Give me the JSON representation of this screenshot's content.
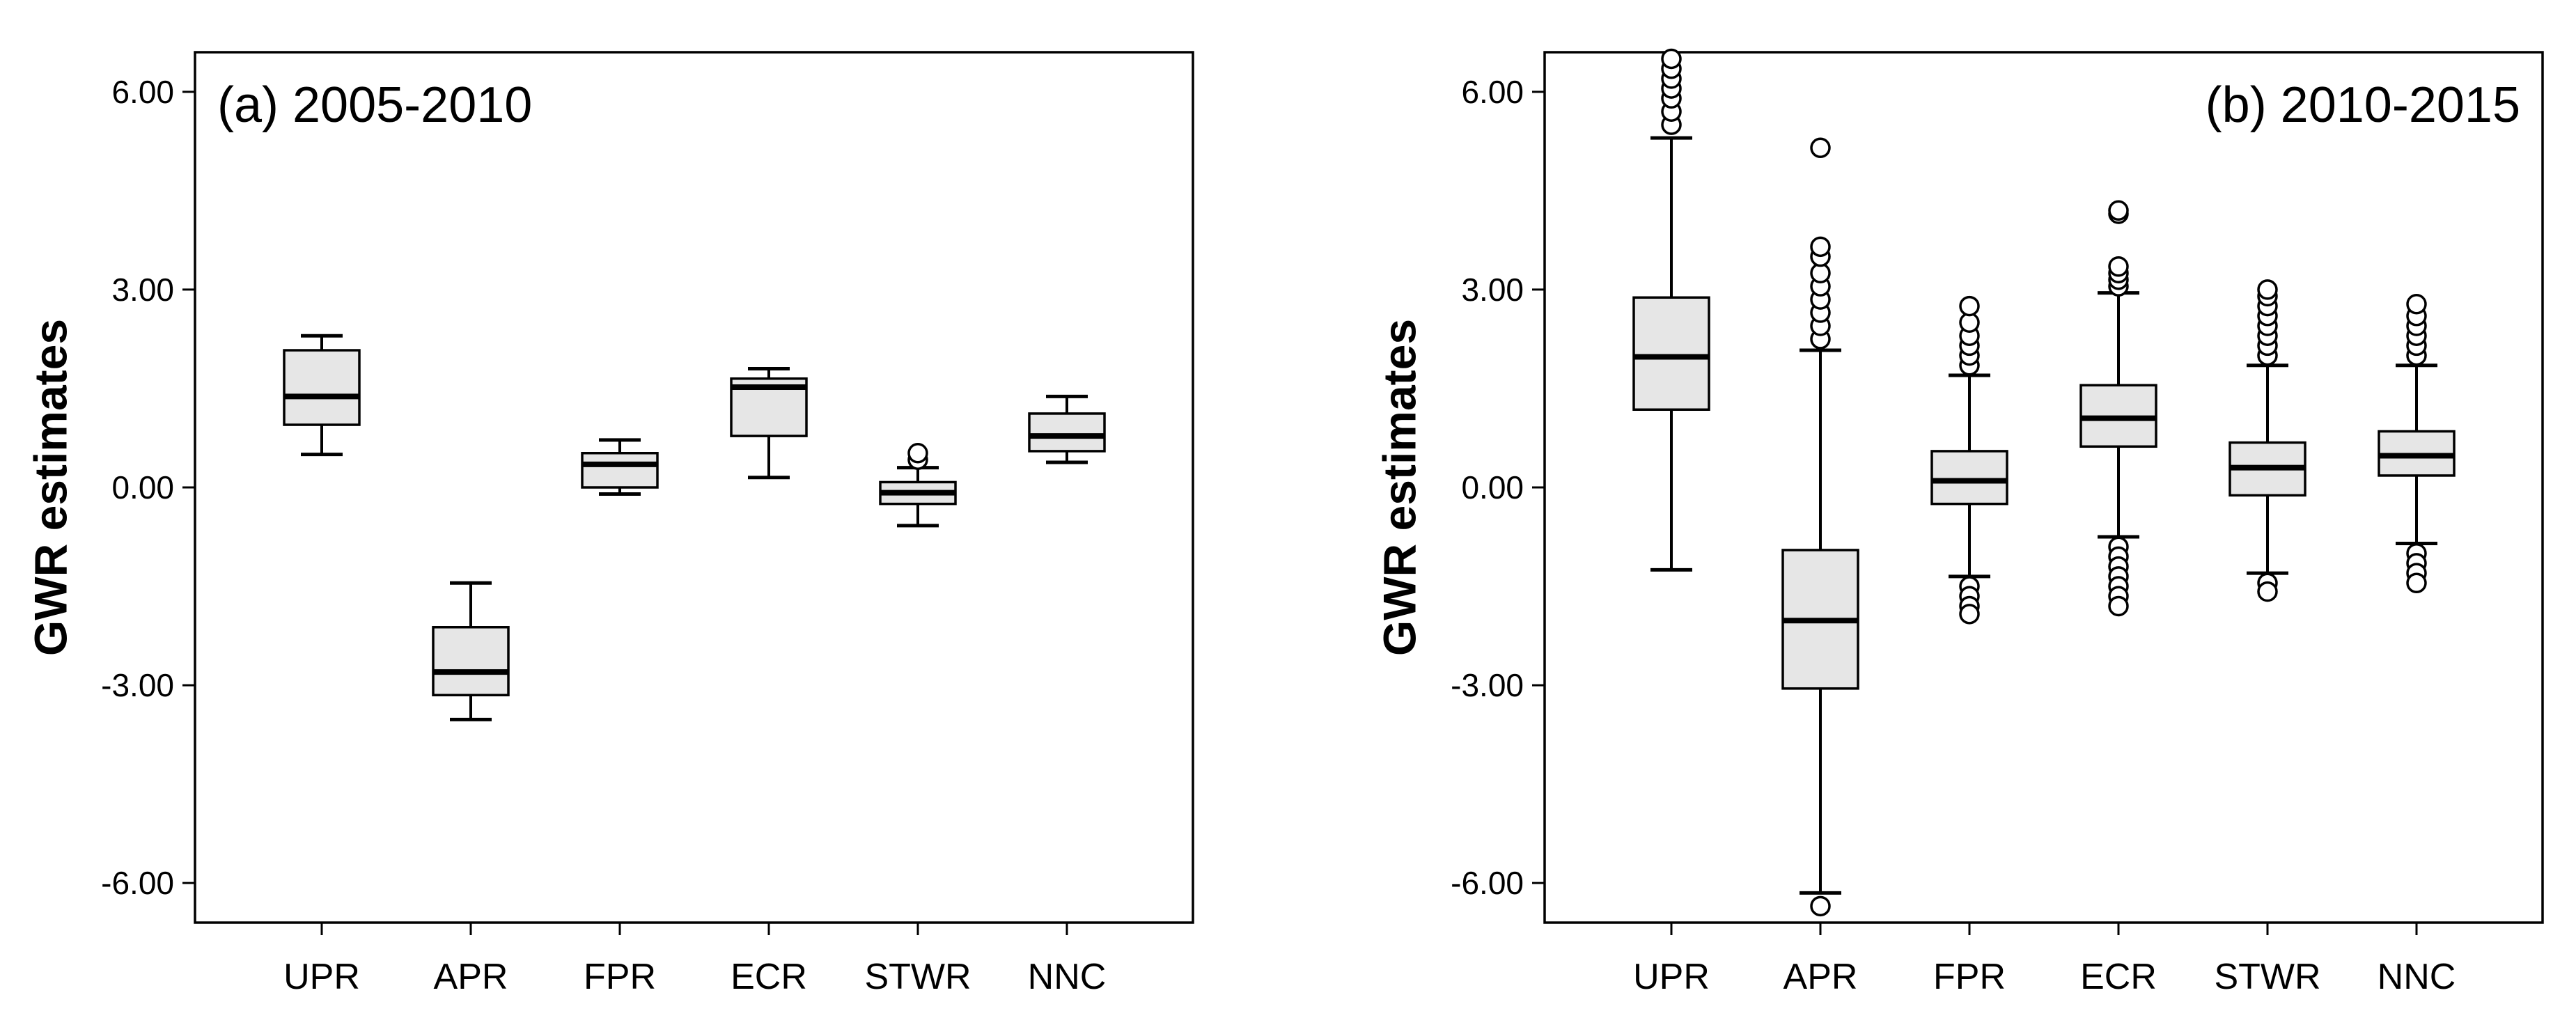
{
  "chart_data": [
    {
      "type": "box",
      "panel_label": "(a) 2005-2010",
      "label_position": "top-left",
      "ylabel": "GWR estimates",
      "ylim": [
        -6.6,
        6.6
      ],
      "yticks": [
        "6.00",
        "3.00",
        "0.00",
        "-3.00",
        "-6.00"
      ],
      "ytick_values": [
        6,
        3,
        0,
        -3,
        -6
      ],
      "categories": [
        "UPR",
        "APR",
        "FPR",
        "ECR",
        "STWR",
        "NNC"
      ],
      "box_color": "#e6e6e6",
      "boxes": [
        {
          "whisker_low": 0.5,
          "q1": 0.95,
          "median": 1.38,
          "q3": 2.08,
          "whisker_high": 2.3,
          "outliers": []
        },
        {
          "whisker_low": -3.52,
          "q1": -3.15,
          "median": -2.8,
          "q3": -2.12,
          "whisker_high": -1.45,
          "outliers": []
        },
        {
          "whisker_low": -0.1,
          "q1": 0.0,
          "median": 0.35,
          "q3": 0.52,
          "whisker_high": 0.72,
          "outliers": []
        },
        {
          "whisker_low": 0.15,
          "q1": 0.78,
          "median": 1.52,
          "q3": 1.65,
          "whisker_high": 1.8,
          "outliers": []
        },
        {
          "whisker_low": -0.58,
          "q1": -0.25,
          "median": -0.08,
          "q3": 0.08,
          "whisker_high": 0.3,
          "outliers": [
            0.42,
            0.52
          ]
        },
        {
          "whisker_low": 0.38,
          "q1": 0.55,
          "median": 0.78,
          "q3": 1.12,
          "whisker_high": 1.38,
          "outliers": []
        }
      ]
    },
    {
      "type": "box",
      "panel_label": "(b) 2010-2015",
      "label_position": "top-right",
      "ylabel": "GWR estimates",
      "ylim": [
        -6.6,
        6.6
      ],
      "yticks": [
        "6.00",
        "3.00",
        "0.00",
        "-3.00",
        "-6.00"
      ],
      "ytick_values": [
        6,
        3,
        0,
        -3,
        -6
      ],
      "categories": [
        "UPR",
        "APR",
        "FPR",
        "ECR",
        "STWR",
        "NNC"
      ],
      "box_color": "#e6e6e6",
      "boxes": [
        {
          "whisker_low": -1.25,
          "q1": 1.18,
          "median": 1.98,
          "q3": 2.88,
          "whisker_high": 5.3,
          "outliers": [
            5.5,
            5.7,
            5.9,
            6.05,
            6.2,
            6.35,
            6.5
          ]
        },
        {
          "whisker_low": -6.15,
          "q1": -3.05,
          "median": -2.02,
          "q3": -0.95,
          "whisker_high": 2.08,
          "outliers": [
            2.25,
            2.45,
            2.65,
            2.85,
            3.05,
            3.25,
            3.5,
            3.65,
            5.15,
            -6.35
          ]
        },
        {
          "whisker_low": -1.35,
          "q1": -0.25,
          "median": 0.1,
          "q3": 0.55,
          "whisker_high": 1.7,
          "outliers": [
            1.85,
            2.0,
            2.15,
            2.3,
            2.5,
            2.75,
            -1.5,
            -1.65,
            -1.8,
            -1.92
          ]
        },
        {
          "whisker_low": -0.75,
          "q1": 0.62,
          "median": 1.05,
          "q3": 1.55,
          "whisker_high": 2.95,
          "outliers": [
            3.05,
            3.15,
            3.25,
            3.35,
            4.15,
            4.2,
            -0.9,
            -1.05,
            -1.2,
            -1.35,
            -1.5,
            -1.65,
            -1.8
          ]
        },
        {
          "whisker_low": -1.3,
          "q1": -0.12,
          "median": 0.3,
          "q3": 0.68,
          "whisker_high": 1.85,
          "outliers": [
            2.0,
            2.15,
            2.3,
            2.45,
            2.6,
            2.75,
            2.9,
            3.0,
            -1.45,
            -1.58
          ]
        },
        {
          "whisker_low": -0.85,
          "q1": 0.18,
          "median": 0.48,
          "q3": 0.85,
          "whisker_high": 1.85,
          "outliers": [
            2.0,
            2.15,
            2.3,
            2.45,
            2.6,
            2.78,
            -1.0,
            -1.15,
            -1.3,
            -1.45
          ]
        }
      ]
    }
  ]
}
